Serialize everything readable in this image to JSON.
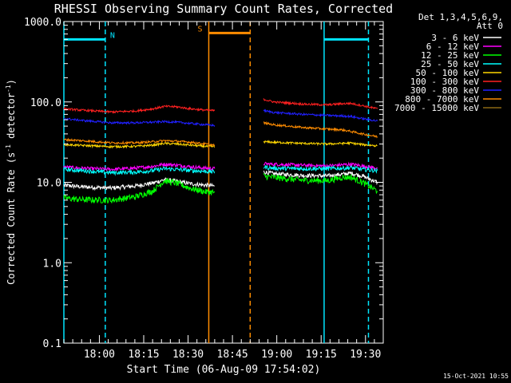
{
  "chart_data": {
    "type": "line",
    "title": "RHESSI Observing Summary Count Rates, Corrected",
    "xlabel": "Start Time (06-Aug-09 17:54:02)",
    "ylabel_parts": [
      "Corrected Count Rate (s",
      "-1",
      " detector",
      "-1",
      ")"
    ],
    "ylabel": "Corrected Count Rate (s-1 detector-1)",
    "yscale": "log",
    "ylim": [
      0.1,
      1000
    ],
    "xlim_min": [
      -6,
      102
    ],
    "x_tick_positions_min": [
      6,
      21,
      36,
      51,
      66,
      81,
      96
    ],
    "x_tick_labels": [
      "18:00",
      "18:15",
      "18:30",
      "18:45",
      "19:00",
      "19:15",
      "19:30"
    ],
    "y_tick_values": [
      0.1,
      1,
      10,
      100,
      1000
    ],
    "y_tick_labels": [
      "0.1",
      "1.0",
      "10.0",
      "100.0",
      "1000.0"
    ],
    "legend_header": [
      "Det 1,3,4,5,6,9,",
      "Att 0"
    ],
    "legend_position": "right",
    "series": [
      {
        "name": "3 - 6 keV",
        "color": "#ffffff",
        "values": [
          [
            -6,
            9.2
          ],
          [
            0,
            8.8
          ],
          [
            10,
            8.5
          ],
          [
            18,
            9.0
          ],
          [
            24,
            9.8
          ],
          [
            28,
            10.8
          ],
          [
            32,
            10.3
          ],
          [
            37,
            9.6
          ],
          [
            42,
            9.2
          ],
          [
            45,
            9.0
          ],
          [
            null,
            null
          ],
          [
            61.5,
            13.5
          ],
          [
            65,
            12.8
          ],
          [
            75,
            12.2
          ],
          [
            83,
            12.0
          ],
          [
            88,
            12.6
          ],
          [
            91,
            13.0
          ],
          [
            95,
            12.0
          ],
          [
            100,
            10.0
          ]
        ]
      },
      {
        "name": "6 - 12 keV",
        "color": "#ff00ff",
        "values": [
          [
            -6,
            15.5
          ],
          [
            0,
            15.0
          ],
          [
            10,
            14.5
          ],
          [
            18,
            15.0
          ],
          [
            24,
            15.8
          ],
          [
            28,
            16.8
          ],
          [
            32,
            16.4
          ],
          [
            37,
            15.6
          ],
          [
            42,
            15.0
          ],
          [
            45,
            14.8
          ],
          [
            null,
            null
          ],
          [
            61.5,
            17.0
          ],
          [
            65,
            16.8
          ],
          [
            75,
            16.3
          ],
          [
            83,
            16.0
          ],
          [
            88,
            16.5
          ],
          [
            91,
            16.8
          ],
          [
            95,
            16.0
          ],
          [
            100,
            15.0
          ]
        ]
      },
      {
        "name": "12 - 25 keV",
        "color": "#00ff00",
        "values": [
          [
            -6,
            6.4
          ],
          [
            0,
            6.1
          ],
          [
            10,
            6.0
          ],
          [
            18,
            6.6
          ],
          [
            24,
            7.8
          ],
          [
            28,
            10.5
          ],
          [
            32,
            9.8
          ],
          [
            37,
            8.4
          ],
          [
            42,
            7.6
          ],
          [
            45,
            7.5
          ],
          [
            null,
            null
          ],
          [
            61.5,
            12.0
          ],
          [
            65,
            11.5
          ],
          [
            75,
            10.6
          ],
          [
            83,
            10.5
          ],
          [
            88,
            11.5
          ],
          [
            91,
            11.6
          ],
          [
            95,
            10.0
          ],
          [
            100,
            7.8
          ]
        ]
      },
      {
        "name": "25 - 50 keV",
        "color": "#00ffff",
        "values": [
          [
            -6,
            14.5
          ],
          [
            0,
            14.0
          ],
          [
            10,
            13.2
          ],
          [
            18,
            13.4
          ],
          [
            24,
            14.0
          ],
          [
            28,
            14.8
          ],
          [
            32,
            14.5
          ],
          [
            37,
            14.0
          ],
          [
            42,
            13.7
          ],
          [
            45,
            13.5
          ],
          [
            null,
            null
          ],
          [
            61.5,
            15.5
          ],
          [
            65,
            15.0
          ],
          [
            75,
            14.8
          ],
          [
            83,
            14.8
          ],
          [
            88,
            15.0
          ],
          [
            91,
            15.2
          ],
          [
            95,
            14.5
          ],
          [
            100,
            14.0
          ]
        ]
      },
      {
        "name": "50 - 100 keV",
        "color": "#ffd700",
        "values": [
          [
            -6,
            29.5
          ],
          [
            0,
            28.8
          ],
          [
            10,
            27.8
          ],
          [
            18,
            28.0
          ],
          [
            24,
            29.0
          ],
          [
            28,
            30.5
          ],
          [
            32,
            30.0
          ],
          [
            37,
            29.0
          ],
          [
            42,
            28.0
          ],
          [
            45,
            27.8
          ],
          [
            null,
            null
          ],
          [
            61.5,
            32.0
          ],
          [
            65,
            31.5
          ],
          [
            75,
            30.5
          ],
          [
            83,
            30.0
          ],
          [
            88,
            30.5
          ],
          [
            91,
            30.8
          ],
          [
            95,
            29.5
          ],
          [
            100,
            28.5
          ]
        ]
      },
      {
        "name": "100 - 300 keV",
        "color": "#ff2020",
        "values": [
          [
            -6,
            82
          ],
          [
            0,
            79
          ],
          [
            10,
            75
          ],
          [
            18,
            77
          ],
          [
            24,
            82
          ],
          [
            28,
            88
          ],
          [
            32,
            87
          ],
          [
            37,
            82
          ],
          [
            42,
            79
          ],
          [
            45,
            78
          ],
          [
            null,
            null
          ],
          [
            61.5,
            108
          ],
          [
            65,
            100
          ],
          [
            75,
            94
          ],
          [
            83,
            92
          ],
          [
            88,
            95
          ],
          [
            91,
            96
          ],
          [
            95,
            90
          ],
          [
            100,
            82
          ]
        ]
      },
      {
        "name": "300 - 800 keV",
        "color": "#2020ff",
        "values": [
          [
            -6,
            62
          ],
          [
            0,
            59
          ],
          [
            10,
            55
          ],
          [
            18,
            55
          ],
          [
            24,
            56
          ],
          [
            28,
            57
          ],
          [
            32,
            56
          ],
          [
            37,
            54
          ],
          [
            42,
            52
          ],
          [
            45,
            51
          ],
          [
            null,
            null
          ],
          [
            61.5,
            78
          ],
          [
            65,
            74
          ],
          [
            75,
            70
          ],
          [
            83,
            68
          ],
          [
            88,
            67
          ],
          [
            91,
            66
          ],
          [
            95,
            62
          ],
          [
            100,
            58
          ]
        ]
      },
      {
        "name": "800 - 7000 keV",
        "color": "#ff8c00",
        "values": [
          [
            -6,
            34
          ],
          [
            0,
            33
          ],
          [
            10,
            31
          ],
          [
            18,
            31
          ],
          [
            24,
            32
          ],
          [
            28,
            33
          ],
          [
            32,
            32.5
          ],
          [
            37,
            31.5
          ],
          [
            42,
            30
          ],
          [
            45,
            29
          ],
          [
            null,
            null
          ],
          [
            61.5,
            55
          ],
          [
            65,
            52
          ],
          [
            75,
            48
          ],
          [
            83,
            46
          ],
          [
            88,
            45
          ],
          [
            91,
            43
          ],
          [
            95,
            40
          ],
          [
            100,
            37
          ]
        ]
      },
      {
        "name": "7000 - 15000 keV",
        "color": "#8b6914",
        "values": []
      }
    ],
    "segments": {
      "night_N": {
        "label": "N",
        "color": "#00e5ff",
        "level": 600,
        "start_min": -6,
        "end_min": 8
      },
      "night_N2": {
        "color": "#00e5ff",
        "level": 600,
        "start_min": 82,
        "end_min": 97
      },
      "saa_S": {
        "label": "S",
        "color": "#ff8c00",
        "level": 720,
        "start_min": 43,
        "end_min": 57
      }
    },
    "vertical_lines": [
      {
        "x_min": -6,
        "color": "#00e5ff",
        "style": "solid"
      },
      {
        "x_min": 8,
        "color": "#00e5ff",
        "style": "dashed"
      },
      {
        "x_min": 43,
        "color": "#ff8c00",
        "style": "solid"
      },
      {
        "x_min": 57,
        "color": "#ff8c00",
        "style": "dashed"
      },
      {
        "x_min": 82,
        "color": "#00e5ff",
        "style": "solid"
      },
      {
        "x_min": 97,
        "color": "#00e5ff",
        "style": "dashed"
      }
    ]
  },
  "footer": {
    "timestamp": "15-Oct-2021 10:55"
  }
}
